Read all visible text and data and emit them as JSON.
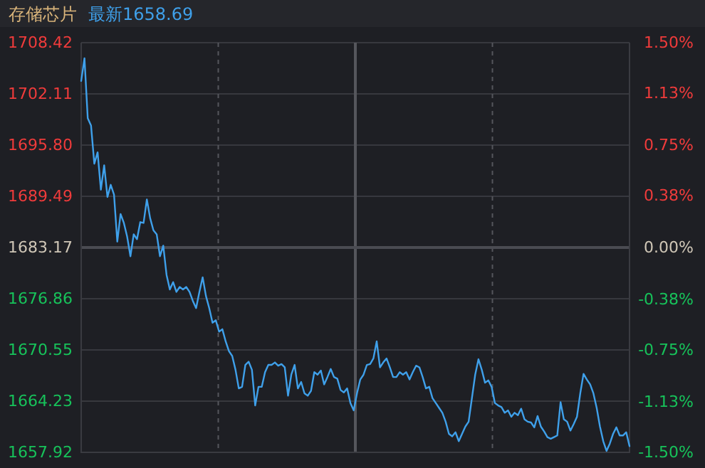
{
  "chart_data": {
    "type": "line",
    "title": "存储芯片",
    "subtitle": "最新1658.69",
    "categories": [
      null,
      null,
      null,
      null,
      null,
      null,
      null,
      null,
      null,
      null,
      null,
      null,
      null,
      null,
      null,
      null,
      null,
      null,
      null,
      null,
      null,
      null,
      null,
      null,
      null,
      null,
      null,
      null,
      null,
      null,
      null,
      null,
      null,
      null,
      null,
      null,
      null,
      null,
      null,
      null,
      null,
      null,
      null,
      null,
      null,
      null,
      null,
      null,
      null,
      null,
      null,
      null,
      null,
      null,
      null,
      null,
      null,
      null,
      null,
      null,
      null,
      null,
      null,
      null,
      null,
      null,
      null,
      null,
      null,
      null,
      null,
      null,
      null,
      null,
      null,
      null,
      null,
      null,
      null,
      null,
      null,
      null,
      null,
      null,
      null,
      null,
      null,
      null,
      null,
      null,
      null,
      null,
      null,
      null,
      null,
      null,
      null,
      null,
      null,
      null,
      null,
      null,
      null,
      null,
      null,
      null,
      null,
      null,
      null,
      null,
      null,
      null,
      null,
      null,
      null,
      null,
      null,
      null,
      null,
      null,
      null,
      null,
      null,
      null,
      null,
      null,
      null,
      null,
      null,
      null,
      null,
      null,
      null,
      null,
      null,
      null,
      null,
      null,
      null,
      null,
      null,
      null,
      null,
      null,
      null,
      null,
      null,
      null,
      null,
      null,
      null,
      null,
      null,
      null,
      null,
      null,
      null,
      null,
      null,
      null,
      null,
      null,
      null,
      null,
      null,
      null,
      null,
      null
    ],
    "ylim": [
      1657.92,
      1708.42
    ],
    "yticks": [
      1657.92,
      1664.23,
      1670.55,
      1676.86,
      1683.17,
      1689.49,
      {
        "value": 1695.8,
        "label": "1695.80"
      },
      1702.11,
      1708.42
    ],
    "y2lim": [
      -1.5,
      1.5
    ],
    "y2ticks": [
      {
        "value": -1.5,
        "label": "-1.50%"
      },
      {
        "value": -1.13,
        "label": "-1.13%"
      },
      {
        "value": -0.75,
        "label": "-0.75%"
      },
      {
        "value": -0.38,
        "label": "-0.38%"
      },
      {
        "value": 0,
        "label": "0.00%"
      },
      {
        "value": 0.38,
        "label": "0.38%"
      },
      {
        "value": 0.75,
        "label": "0.75%"
      },
      {
        "value": 1.13,
        "label": "1.13%"
      },
      {
        "value": 1.5,
        "label": "1.50%"
      }
    ],
    "tick_labels": "y",
    "grid": true,
    "ref_lines": [
      {
        "axis": "y",
        "value": 1683.17,
        "color": "#4a4b52"
      }
    ],
    "series": [
      {
        "color": "#3fa0ea",
        "values": [
          1703.7,
          1706.5,
          1699.1,
          1698.2,
          1693.5,
          1694.9,
          1690.3,
          1693.3,
          1689.4,
          1690.9,
          1689.7,
          1683.9,
          1687.3,
          1686.2,
          1684.5,
          1682.1,
          1684.8,
          1684.2,
          1686.3,
          1686.2,
          1689.1,
          1686.8,
          1685.3,
          1684.8,
          1682.1,
          1683.4,
          1679.8,
          1678.0,
          1678.9,
          1677.7,
          1678.3,
          1678.0,
          1678.3,
          1677.7,
          1676.6,
          1675.7,
          1677.7,
          1679.5,
          1677.2,
          1675.7,
          1673.9,
          1674.2,
          1672.8,
          1673.1,
          1671.6,
          1670.4,
          1669.8,
          1668.1,
          1665.8,
          1666.0,
          1668.7,
          1669.1,
          1668.1,
          1663.7,
          1666.0,
          1666.0,
          1667.8,
          1668.7,
          1668.7,
          1669.0,
          1668.6,
          1668.8,
          1668.4,
          1664.9,
          1667.5,
          1668.7,
          1665.8,
          1666.6,
          1665.2,
          1664.9,
          1665.5,
          1667.8,
          1667.5,
          1668.0,
          1666.3,
          1667.2,
          1668.2,
          1667.2,
          1667.0,
          1665.6,
          1665.3,
          1665.8,
          1664.0,
          1663.1,
          1665.2,
          1666.9,
          1667.5,
          1668.7,
          1668.8,
          1669.5,
          1671.6,
          1668.4,
          1669.0,
          1669.5,
          1668.4,
          1667.2,
          1667.2,
          1667.8,
          1667.5,
          1667.8,
          1666.9,
          1667.8,
          1668.6,
          1668.4,
          1667.2,
          1665.8,
          1666.0,
          1664.6,
          1664.0,
          1663.4,
          1662.8,
          1661.7,
          1660.2,
          1659.9,
          1660.4,
          1659.3,
          1660.2,
          1661.1,
          1661.7,
          1664.6,
          1667.5,
          1669.4,
          1668.1,
          1666.5,
          1666.8,
          1666.0,
          1664.0,
          1663.7,
          1663.5,
          1662.8,
          1663.1,
          1662.3,
          1662.8,
          1662.5,
          1663.3,
          1662.0,
          1661.7,
          1661.6,
          1661.0,
          1662.4,
          1661.1,
          1660.5,
          1659.8,
          1659.6,
          1659.8,
          1660.0,
          1664.1,
          1662.0,
          1661.7,
          1660.6,
          1661.4,
          1662.3,
          1665.2,
          1667.6,
          1666.9,
          1666.3,
          1665.2,
          1663.4,
          1661.1,
          1659.3,
          1658.1,
          1659.0,
          1660.2,
          1661.0,
          1660.0,
          1660.0,
          1660.4,
          1658.69
        ]
      }
    ]
  }
}
